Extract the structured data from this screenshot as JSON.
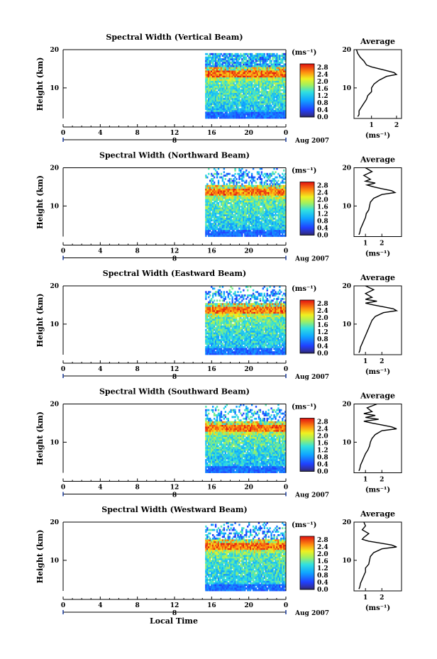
{
  "chart_data": [
    {
      "type": "heatmap",
      "title": "Spectral Width (Vertical Beam)",
      "ylabel": "Height (km)",
      "x_ticks": [
        "0",
        "4",
        "8",
        "12",
        "16",
        "20",
        "0"
      ],
      "date_label": "8",
      "month_label": "Aug 2007",
      "ylim": [
        2,
        20
      ],
      "y_ticks": [
        "20",
        "10"
      ],
      "colorbar": {
        "unit": "(ms⁻¹)",
        "ticks": [
          "2.8",
          "2.4",
          "2.0",
          "1.6",
          "1.2",
          "0.8",
          "0.4",
          "0.0"
        ],
        "range": [
          0,
          3.0
        ]
      },
      "average": {
        "title": "Average",
        "xlabel": "(ms⁻¹)",
        "x_ticks": [
          "1",
          "2"
        ],
        "xlim": [
          0.3,
          2.2
        ],
        "height_km": [
          2.5,
          3,
          4,
          5,
          6,
          7,
          8,
          9,
          10,
          11,
          12,
          13,
          13.5,
          14,
          14.5,
          15,
          15.5,
          16,
          17,
          18,
          19,
          20
        ],
        "values": [
          0.45,
          0.5,
          0.5,
          0.6,
          0.7,
          0.8,
          0.85,
          1.0,
          1.0,
          1.1,
          1.3,
          1.6,
          2.0,
          1.9,
          1.6,
          1.3,
          1.0,
          0.8,
          0.7,
          0.55,
          0.45,
          0.4
        ]
      }
    },
    {
      "type": "heatmap",
      "title": "Spectral Width (Northward Beam)",
      "ylabel": "Height (km)",
      "x_ticks": [
        "0",
        "4",
        "8",
        "12",
        "16",
        "20",
        "0"
      ],
      "date_label": "8",
      "month_label": "Aug 2007",
      "ylim": [
        2,
        20
      ],
      "y_ticks": [
        "20",
        "10"
      ],
      "colorbar": {
        "unit": "(ms⁻¹)",
        "ticks": [
          "2.8",
          "2.4",
          "2.0",
          "1.6",
          "1.2",
          "0.8",
          "0.4",
          "0.0"
        ],
        "range": [
          0,
          3.0
        ]
      },
      "average": {
        "title": "Average",
        "xlabel": "(ms⁻¹)",
        "x_ticks": [
          "1",
          "2"
        ],
        "xlim": [
          0.3,
          3.2
        ],
        "height_km": [
          2.5,
          3,
          4,
          5,
          6,
          7,
          8,
          9,
          10,
          11,
          12,
          13,
          13.5,
          14,
          14.5,
          15,
          15.5,
          16,
          16.5,
          17,
          18,
          19,
          20
        ],
        "values": [
          0.6,
          0.65,
          0.7,
          0.8,
          0.9,
          1.0,
          1.05,
          1.2,
          1.25,
          1.3,
          1.5,
          2.0,
          2.8,
          2.6,
          2.0,
          1.5,
          1.1,
          1.6,
          1.0,
          1.3,
          0.9,
          1.4,
          1.0
        ]
      }
    },
    {
      "type": "heatmap",
      "title": "Spectral Width (Eastward Beam)",
      "ylabel": "Height (km)",
      "x_ticks": [
        "0",
        "4",
        "8",
        "12",
        "16",
        "20",
        "0"
      ],
      "date_label": "8",
      "month_label": "Aug 2007",
      "ylim": [
        2,
        20
      ],
      "y_ticks": [
        "20",
        "10"
      ],
      "colorbar": {
        "unit": "(ms⁻¹)",
        "ticks": [
          "2.8",
          "2.4",
          "2.0",
          "1.6",
          "1.2",
          "0.8",
          "0.4",
          "0.0"
        ],
        "range": [
          0,
          3.0
        ]
      },
      "average": {
        "title": "Average",
        "xlabel": "(ms⁻¹)",
        "x_ticks": [
          "1",
          "2"
        ],
        "xlim": [
          0.3,
          3.2
        ],
        "height_km": [
          2.5,
          3,
          4,
          5,
          6,
          7,
          8,
          9,
          10,
          11,
          12,
          13,
          13.5,
          14,
          14.5,
          15,
          15.5,
          16,
          16.5,
          17,
          18,
          19,
          20
        ],
        "values": [
          0.6,
          0.65,
          0.7,
          0.8,
          0.9,
          1.0,
          1.1,
          1.2,
          1.3,
          1.4,
          1.6,
          2.1,
          2.9,
          2.7,
          2.1,
          1.5,
          1.0,
          1.7,
          1.0,
          1.4,
          1.0,
          1.5,
          1.0
        ]
      }
    },
    {
      "type": "heatmap",
      "title": "Spectral Width (Southward Beam)",
      "ylabel": "Height (km)",
      "x_ticks": [
        "0",
        "4",
        "8",
        "12",
        "16",
        "20",
        "0"
      ],
      "date_label": "8",
      "month_label": "Aug 2007",
      "ylim": [
        2,
        20
      ],
      "y_ticks": [
        "20",
        "10"
      ],
      "colorbar": {
        "unit": "(ms⁻¹)",
        "ticks": [
          "2.8",
          "2.4",
          "2.0",
          "1.6",
          "1.2",
          "0.8",
          "0.4",
          "0.0"
        ],
        "range": [
          0,
          3.0
        ]
      },
      "average": {
        "title": "Average",
        "xlabel": "(ms⁻¹)",
        "x_ticks": [
          "1",
          "2"
        ],
        "xlim": [
          0.3,
          3.2
        ],
        "height_km": [
          2.5,
          3,
          4,
          5,
          6,
          7,
          8,
          9,
          10,
          11,
          12,
          13,
          13.5,
          14,
          14.5,
          15,
          15.5,
          16,
          16.5,
          17,
          17.5,
          18,
          19,
          20
        ],
        "values": [
          0.6,
          0.65,
          0.7,
          0.8,
          0.9,
          1.0,
          1.15,
          1.25,
          1.3,
          1.4,
          1.6,
          2.0,
          2.9,
          2.6,
          2.0,
          1.4,
          0.9,
          1.8,
          1.0,
          1.6,
          0.9,
          1.4,
          1.1,
          1.7
        ]
      }
    },
    {
      "type": "heatmap",
      "title": "Spectral Width (Westward Beam)",
      "ylabel": "Height (km)",
      "x_ticks": [
        "0",
        "4",
        "8",
        "12",
        "16",
        "20",
        "0"
      ],
      "date_label": "8",
      "month_label": "Aug 2007",
      "ylim": [
        2,
        20
      ],
      "y_ticks": [
        "20",
        "10"
      ],
      "colorbar": {
        "unit": "(ms⁻¹)",
        "ticks": [
          "2.8",
          "2.4",
          "2.0",
          "1.6",
          "1.2",
          "0.8",
          "0.4",
          "0.0"
        ],
        "range": [
          0,
          3.0
        ]
      },
      "average": {
        "title": "Average",
        "xlabel": "(ms⁻¹)",
        "x_ticks": [
          "1",
          "2"
        ],
        "xlim": [
          0.3,
          3.2
        ],
        "height_km": [
          2.5,
          3,
          4,
          5,
          6,
          7,
          8,
          9,
          10,
          11,
          12,
          13,
          13.5,
          14,
          14.5,
          15,
          15.5,
          16,
          17,
          18,
          19,
          20
        ],
        "values": [
          0.6,
          0.65,
          0.7,
          0.8,
          0.9,
          1.0,
          1.0,
          1.2,
          1.25,
          1.3,
          1.5,
          2.0,
          2.9,
          2.6,
          1.9,
          1.2,
          0.8,
          0.9,
          1.2,
          0.8,
          1.0,
          0.9
        ]
      }
    }
  ],
  "xaxis_label": "Local Time",
  "colors": {
    "missing": "#ffffff",
    "axis": "#000000",
    "date_bar": "#1a3a9a"
  }
}
